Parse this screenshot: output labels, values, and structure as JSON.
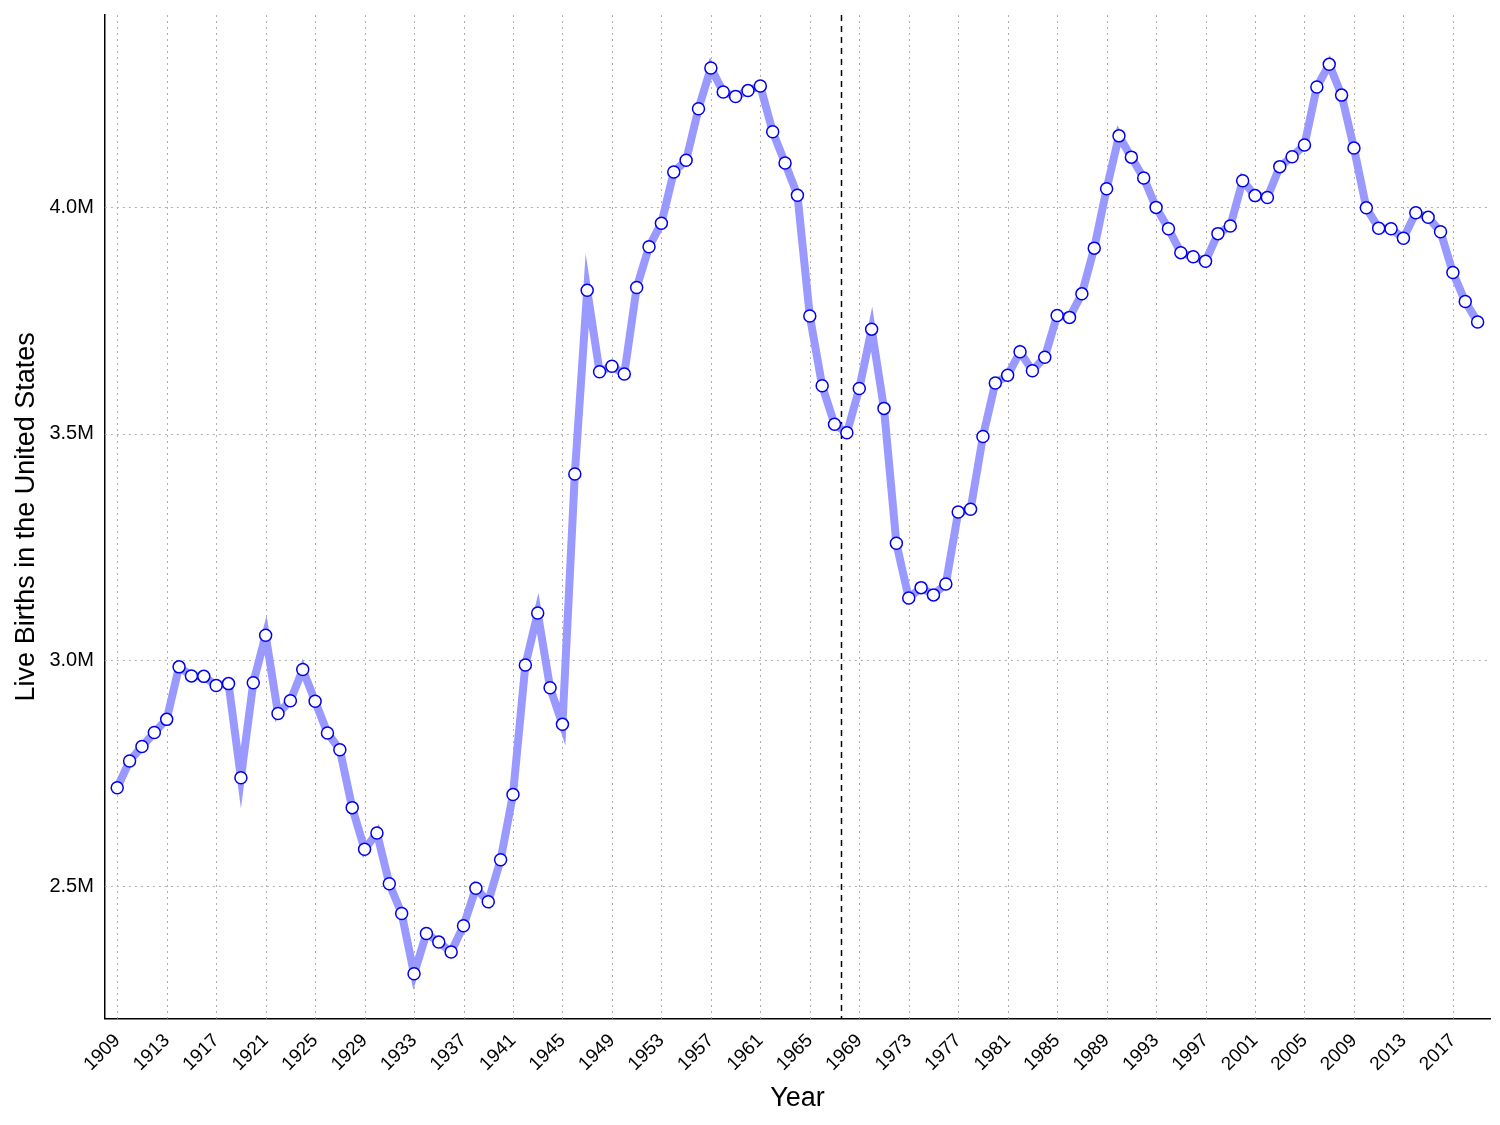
{
  "chart_data": {
    "type": "line",
    "x_label": "Year",
    "y_label": "Live Births in the United States",
    "x": [
      1909,
      1910,
      1911,
      1912,
      1913,
      1914,
      1915,
      1916,
      1917,
      1918,
      1919,
      1920,
      1921,
      1922,
      1923,
      1924,
      1925,
      1926,
      1927,
      1928,
      1929,
      1930,
      1931,
      1932,
      1933,
      1934,
      1935,
      1936,
      1937,
      1938,
      1939,
      1940,
      1941,
      1942,
      1943,
      1944,
      1945,
      1946,
      1947,
      1948,
      1949,
      1950,
      1951,
      1952,
      1953,
      1954,
      1955,
      1956,
      1957,
      1958,
      1959,
      1960,
      1961,
      1962,
      1963,
      1964,
      1965,
      1966,
      1967,
      1968,
      1969,
      1970,
      1971,
      1972,
      1973,
      1974,
      1975,
      1976,
      1977,
      1978,
      1979,
      1980,
      1981,
      1982,
      1983,
      1984,
      1985,
      1986,
      1987,
      1988,
      1989,
      1990,
      1991,
      1992,
      1993,
      1994,
      1995,
      1996,
      1997,
      1998,
      1999,
      2000,
      2001,
      2002,
      2003,
      2004,
      2005,
      2006,
      2007,
      2008,
      2009,
      2010,
      2011,
      2012,
      2013,
      2014,
      2015,
      2016,
      2017,
      2018,
      2019
    ],
    "values": [
      2718000,
      2777000,
      2809000,
      2840000,
      2869000,
      2985000,
      2965000,
      2964000,
      2944000,
      2948000,
      2740000,
      2950000,
      3055000,
      2882000,
      2910000,
      2979000,
      2909000,
      2839000,
      2802000,
      2674000,
      2582000,
      2618000,
      2506000,
      2440000,
      2307000,
      2396000,
      2377000,
      2355000,
      2413000,
      2496000,
      2466000,
      2559000,
      2703000,
      2989000,
      3104000,
      2939000,
      2858000,
      3411000,
      3817000,
      3637000,
      3649000,
      3632000,
      3823000,
      3913000,
      3965000,
      4078000,
      4104000,
      4218000,
      4308000,
      4255000,
      4245000,
      4258000,
      4268000,
      4167000,
      4098000,
      4027000,
      3760000,
      3606000,
      3521000,
      3502000,
      3600000,
      3731000,
      3556000,
      3258000,
      3137000,
      3160000,
      3144000,
      3168000,
      3327000,
      3333000,
      3494000,
      3612000,
      3629000,
      3681000,
      3639000,
      3669000,
      3761000,
      3757000,
      3809000,
      3910000,
      4041000,
      4158000,
      4111000,
      4065000,
      4000000,
      3953000,
      3900000,
      3891000,
      3881000,
      3942000,
      3959000,
      4059000,
      4026000,
      4022000,
      4090000,
      4112000,
      4138000,
      4266000,
      4316000,
      4248000,
      4131000,
      3999000,
      3954000,
      3953000,
      3932000,
      3988000,
      3978000,
      3946000,
      3856000,
      3792000,
      3747000
    ],
    "color": "#9999ff",
    "marker": "circle",
    "xlim": [
      1908,
      2020
    ],
    "xticks": [
      1909,
      1913,
      1917,
      1921,
      1925,
      1929,
      1933,
      1937,
      1941,
      1945,
      1949,
      1953,
      1957,
      1961,
      1965,
      1969,
      1973,
      1977,
      1981,
      1985,
      1989,
      1993,
      1997,
      2001,
      2005,
      2009,
      2013,
      2017
    ],
    "ylim": [
      2208000,
      4425000
    ],
    "yticks": [
      {
        "value": 2500000,
        "label": "2.5M"
      },
      {
        "value": 3000000,
        "label": "3.0M"
      },
      {
        "value": 3500000,
        "label": "3.5M"
      },
      {
        "value": 4000000,
        "label": "4.0M"
      }
    ],
    "vline_x": 1967.5,
    "grid": true
  }
}
